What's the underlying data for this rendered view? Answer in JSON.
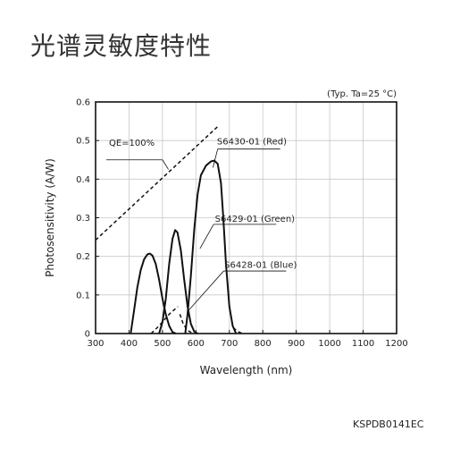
{
  "title": "光谱灵敏度特性",
  "doc_code": "KSPDB0141EC",
  "chart_data": {
    "type": "line",
    "note": "(Typ. Ta=25 °C)",
    "xlabel": "Wavelength (nm)",
    "ylabel": "Photosensitivity (A/W)",
    "xlim": [
      300,
      1200
    ],
    "ylim": [
      0,
      0.6
    ],
    "xticks": [
      300,
      400,
      500,
      600,
      700,
      800,
      900,
      1000,
      1100,
      1200
    ],
    "yticks": [
      0,
      0.1,
      0.2,
      0.3,
      0.4,
      0.5,
      0.6
    ],
    "grid": true,
    "series": [
      {
        "name": "S6428-01 (Blue)",
        "style": "solid",
        "points": [
          [
            405,
            0
          ],
          [
            415,
            0.06
          ],
          [
            425,
            0.12
          ],
          [
            435,
            0.165
          ],
          [
            445,
            0.192
          ],
          [
            455,
            0.205
          ],
          [
            462,
            0.207
          ],
          [
            470,
            0.202
          ],
          [
            480,
            0.18
          ],
          [
            490,
            0.14
          ],
          [
            500,
            0.09
          ],
          [
            510,
            0.05
          ],
          [
            520,
            0.02
          ],
          [
            530,
            0.004
          ],
          [
            540,
            0
          ]
        ]
      },
      {
        "name": "S6429-01 (Green)",
        "style": "solid",
        "points": [
          [
            490,
            0
          ],
          [
            500,
            0.03
          ],
          [
            510,
            0.09
          ],
          [
            520,
            0.18
          ],
          [
            530,
            0.245
          ],
          [
            538,
            0.268
          ],
          [
            545,
            0.262
          ],
          [
            555,
            0.215
          ],
          [
            565,
            0.14
          ],
          [
            575,
            0.07
          ],
          [
            585,
            0.025
          ],
          [
            595,
            0.005
          ],
          [
            605,
            0
          ]
        ]
      },
      {
        "name": "S6430-01 (Red)",
        "style": "solid",
        "points": [
          [
            568,
            0
          ],
          [
            575,
            0.05
          ],
          [
            585,
            0.15
          ],
          [
            595,
            0.27
          ],
          [
            605,
            0.36
          ],
          [
            615,
            0.41
          ],
          [
            630,
            0.435
          ],
          [
            645,
            0.446
          ],
          [
            655,
            0.448
          ],
          [
            665,
            0.44
          ],
          [
            675,
            0.39
          ],
          [
            682,
            0.3
          ],
          [
            690,
            0.18
          ],
          [
            700,
            0.07
          ],
          [
            710,
            0.02
          ],
          [
            720,
            0
          ]
        ]
      },
      {
        "name": "QE=100%",
        "style": "dashed",
        "points": [
          [
            300,
            0.242
          ],
          [
            670,
            0.54
          ]
        ]
      },
      {
        "name": "tail",
        "style": "dashed",
        "points": [
          [
            466,
            0
          ],
          [
            490,
            0.02
          ],
          [
            520,
            0.05
          ],
          [
            546,
            0.07
          ]
        ]
      },
      {
        "name": "tail2",
        "style": "dashed",
        "points": [
          [
            552,
            0.05
          ],
          [
            562,
            0.025
          ],
          [
            575,
            0.008
          ],
          [
            590,
            0.001
          ]
        ]
      },
      {
        "name": "tail3",
        "style": "dashed",
        "points": [
          [
            712,
            0.015
          ],
          [
            725,
            0.005
          ],
          [
            740,
            0
          ]
        ]
      }
    ],
    "annotations": [
      {
        "text": "QE=100%",
        "label_x": 340,
        "label_y": 0.486,
        "line_to": [
          500,
          0.45
        ],
        "target": [
          518,
          0.425
        ]
      },
      {
        "text": "S6430-01 (Red)",
        "label_x": 663,
        "label_y": 0.49,
        "line_from": [
          665,
          0.478
        ],
        "target": [
          651,
          0.43
        ]
      },
      {
        "text": "S6429-01 (Green)",
        "label_x": 657,
        "label_y": 0.29,
        "line_from": [
          653,
          0.283
        ],
        "target": [
          612,
          0.22
        ]
      },
      {
        "text": "S6428-01 (Blue)",
        "label_x": 685,
        "label_y": 0.17,
        "line_from": [
          683,
          0.162
        ],
        "target": [
          578,
          0.06
        ]
      }
    ]
  }
}
